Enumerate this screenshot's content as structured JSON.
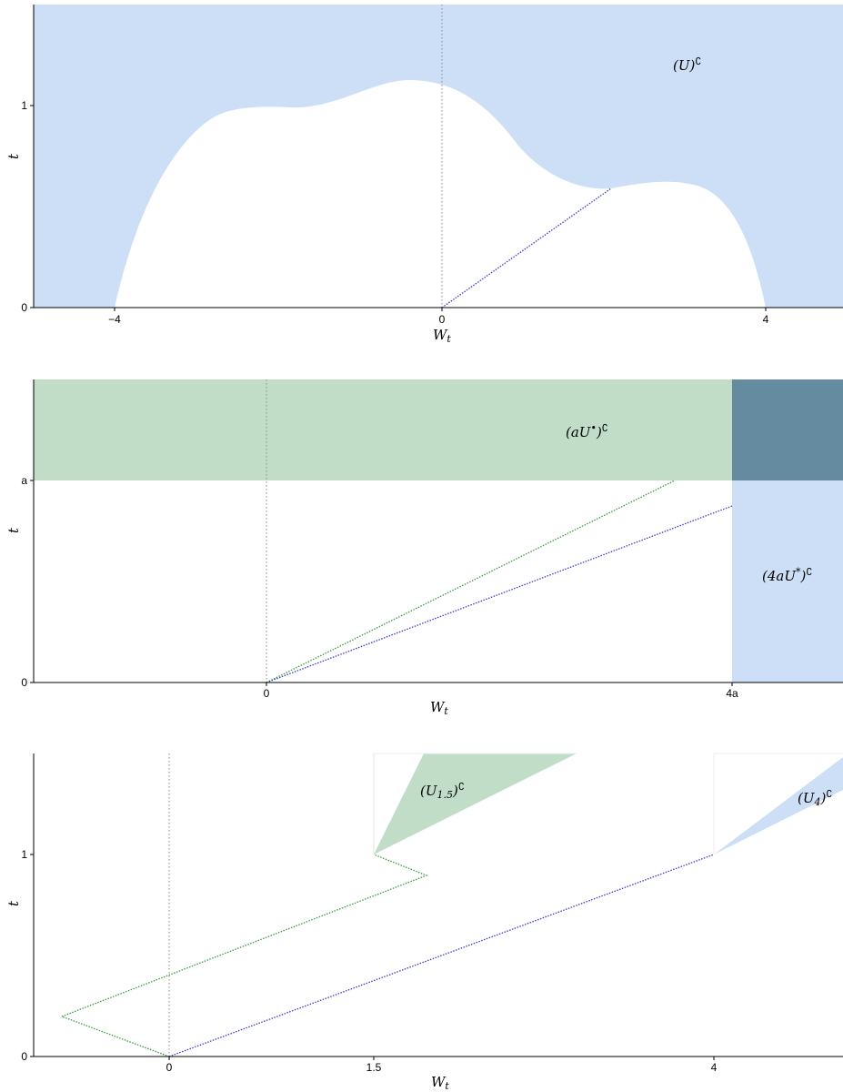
{
  "colors": {
    "blue_region": "#cddff6",
    "green_region": "#c1ddc8",
    "overlap_region": "#648ba0",
    "blue_path": "#3a3ad4",
    "green_path": "#3c9a3c",
    "axis": "#000000",
    "guide": "#888888"
  },
  "panels": [
    {
      "id": "top",
      "xlabel": "W",
      "xlabel_sub": "t",
      "ylabel": "t",
      "xticks": [
        "−4",
        "0",
        "4"
      ],
      "yticks": [
        "0",
        "1"
      ],
      "regions": [
        {
          "label_main": "(U)",
          "label_sup": "∁"
        }
      ]
    },
    {
      "id": "middle",
      "xlabel": "W",
      "xlabel_sub": "t",
      "ylabel": "t",
      "xticks": [
        "0",
        "4a"
      ],
      "yticks": [
        "0",
        "a"
      ],
      "regions": [
        {
          "label_main": "(aU",
          "label_mid": "•",
          "label_end": ")",
          "label_sup": "∁"
        },
        {
          "label_main": "(4aU",
          "label_mid": "*",
          "label_end": ")",
          "label_sup": "∁"
        }
      ]
    },
    {
      "id": "bottom",
      "xlabel": "W",
      "xlabel_sub": "t",
      "ylabel": "t",
      "xticks": [
        "0",
        "1.5",
        "4"
      ],
      "yticks": [
        "0",
        "1"
      ],
      "regions": [
        {
          "label_main": "(U",
          "label_sub": "1.5",
          "label_end": ")",
          "label_sup": "∁"
        },
        {
          "label_main": "(U",
          "label_sub": "4",
          "label_end": ")",
          "label_sup": "∁"
        }
      ]
    }
  ]
}
